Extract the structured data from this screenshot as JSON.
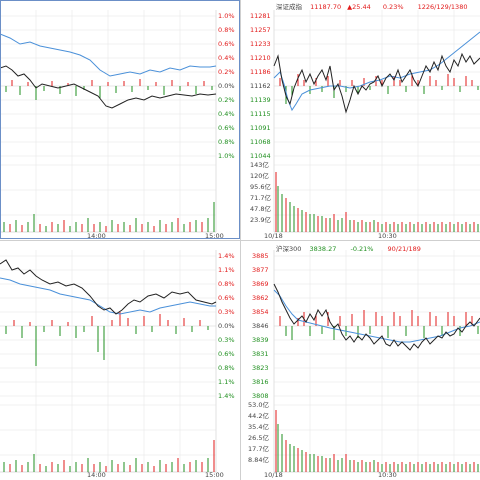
{
  "colors": {
    "up": "#e21b1b",
    "down": "#1f8f1f",
    "price_line": "#222222",
    "avg_line": "#4a90d9",
    "grid": "#e6e6e6",
    "divider": "#6b8fc7"
  },
  "top_left": {
    "pct_labels": [
      "1.0%",
      "0.8%",
      "0.6%",
      "0.4%",
      "0.2%",
      "0.0%",
      "0.2%",
      "0.4%",
      "0.6%",
      "0.8%",
      "1.0%"
    ],
    "time_labels": [
      "14:00",
      "15:00"
    ]
  },
  "top_right": {
    "header": {
      "name": "深证成指",
      "price": "11187.70",
      "arrow": "▲",
      "change": "25.44",
      "pct": "0.23%",
      "breadth": "1226/129/1380"
    },
    "price_labels": [
      "11281",
      "11257",
      "11233",
      "11210",
      "11186",
      "11162",
      "11139",
      "11115",
      "11091",
      "11068",
      "11044"
    ],
    "vol_labels": [
      "143亿",
      "120亿",
      "95.6亿",
      "71.7亿",
      "47.8亿",
      "23.9亿"
    ],
    "time_labels": [
      "10/18",
      "10:30"
    ]
  },
  "bottom_left": {
    "pct_labels": [
      "1.4%",
      "1.1%",
      "0.8%",
      "0.6%",
      "0.3%",
      "0.0%",
      "0.3%",
      "0.6%",
      "0.8%",
      "1.1%",
      "1.4%"
    ],
    "time_labels": [
      "14:00",
      "15:00"
    ]
  },
  "bottom_right": {
    "header": {
      "name": "沪深300",
      "price": "3838.27",
      "change": "-0.21%",
      "breadth": "90/21/189"
    },
    "price_labels": [
      "3885",
      "3877",
      "3869",
      "3862",
      "3854",
      "3846",
      "3839",
      "3831",
      "3823",
      "3816",
      "3808"
    ],
    "vol_labels": [
      "53.0亿",
      "44.2亿",
      "35.4亿",
      "26.5亿",
      "17.7亿",
      "8.84亿"
    ],
    "time_labels": [
      "10/18",
      "10:30"
    ]
  }
}
